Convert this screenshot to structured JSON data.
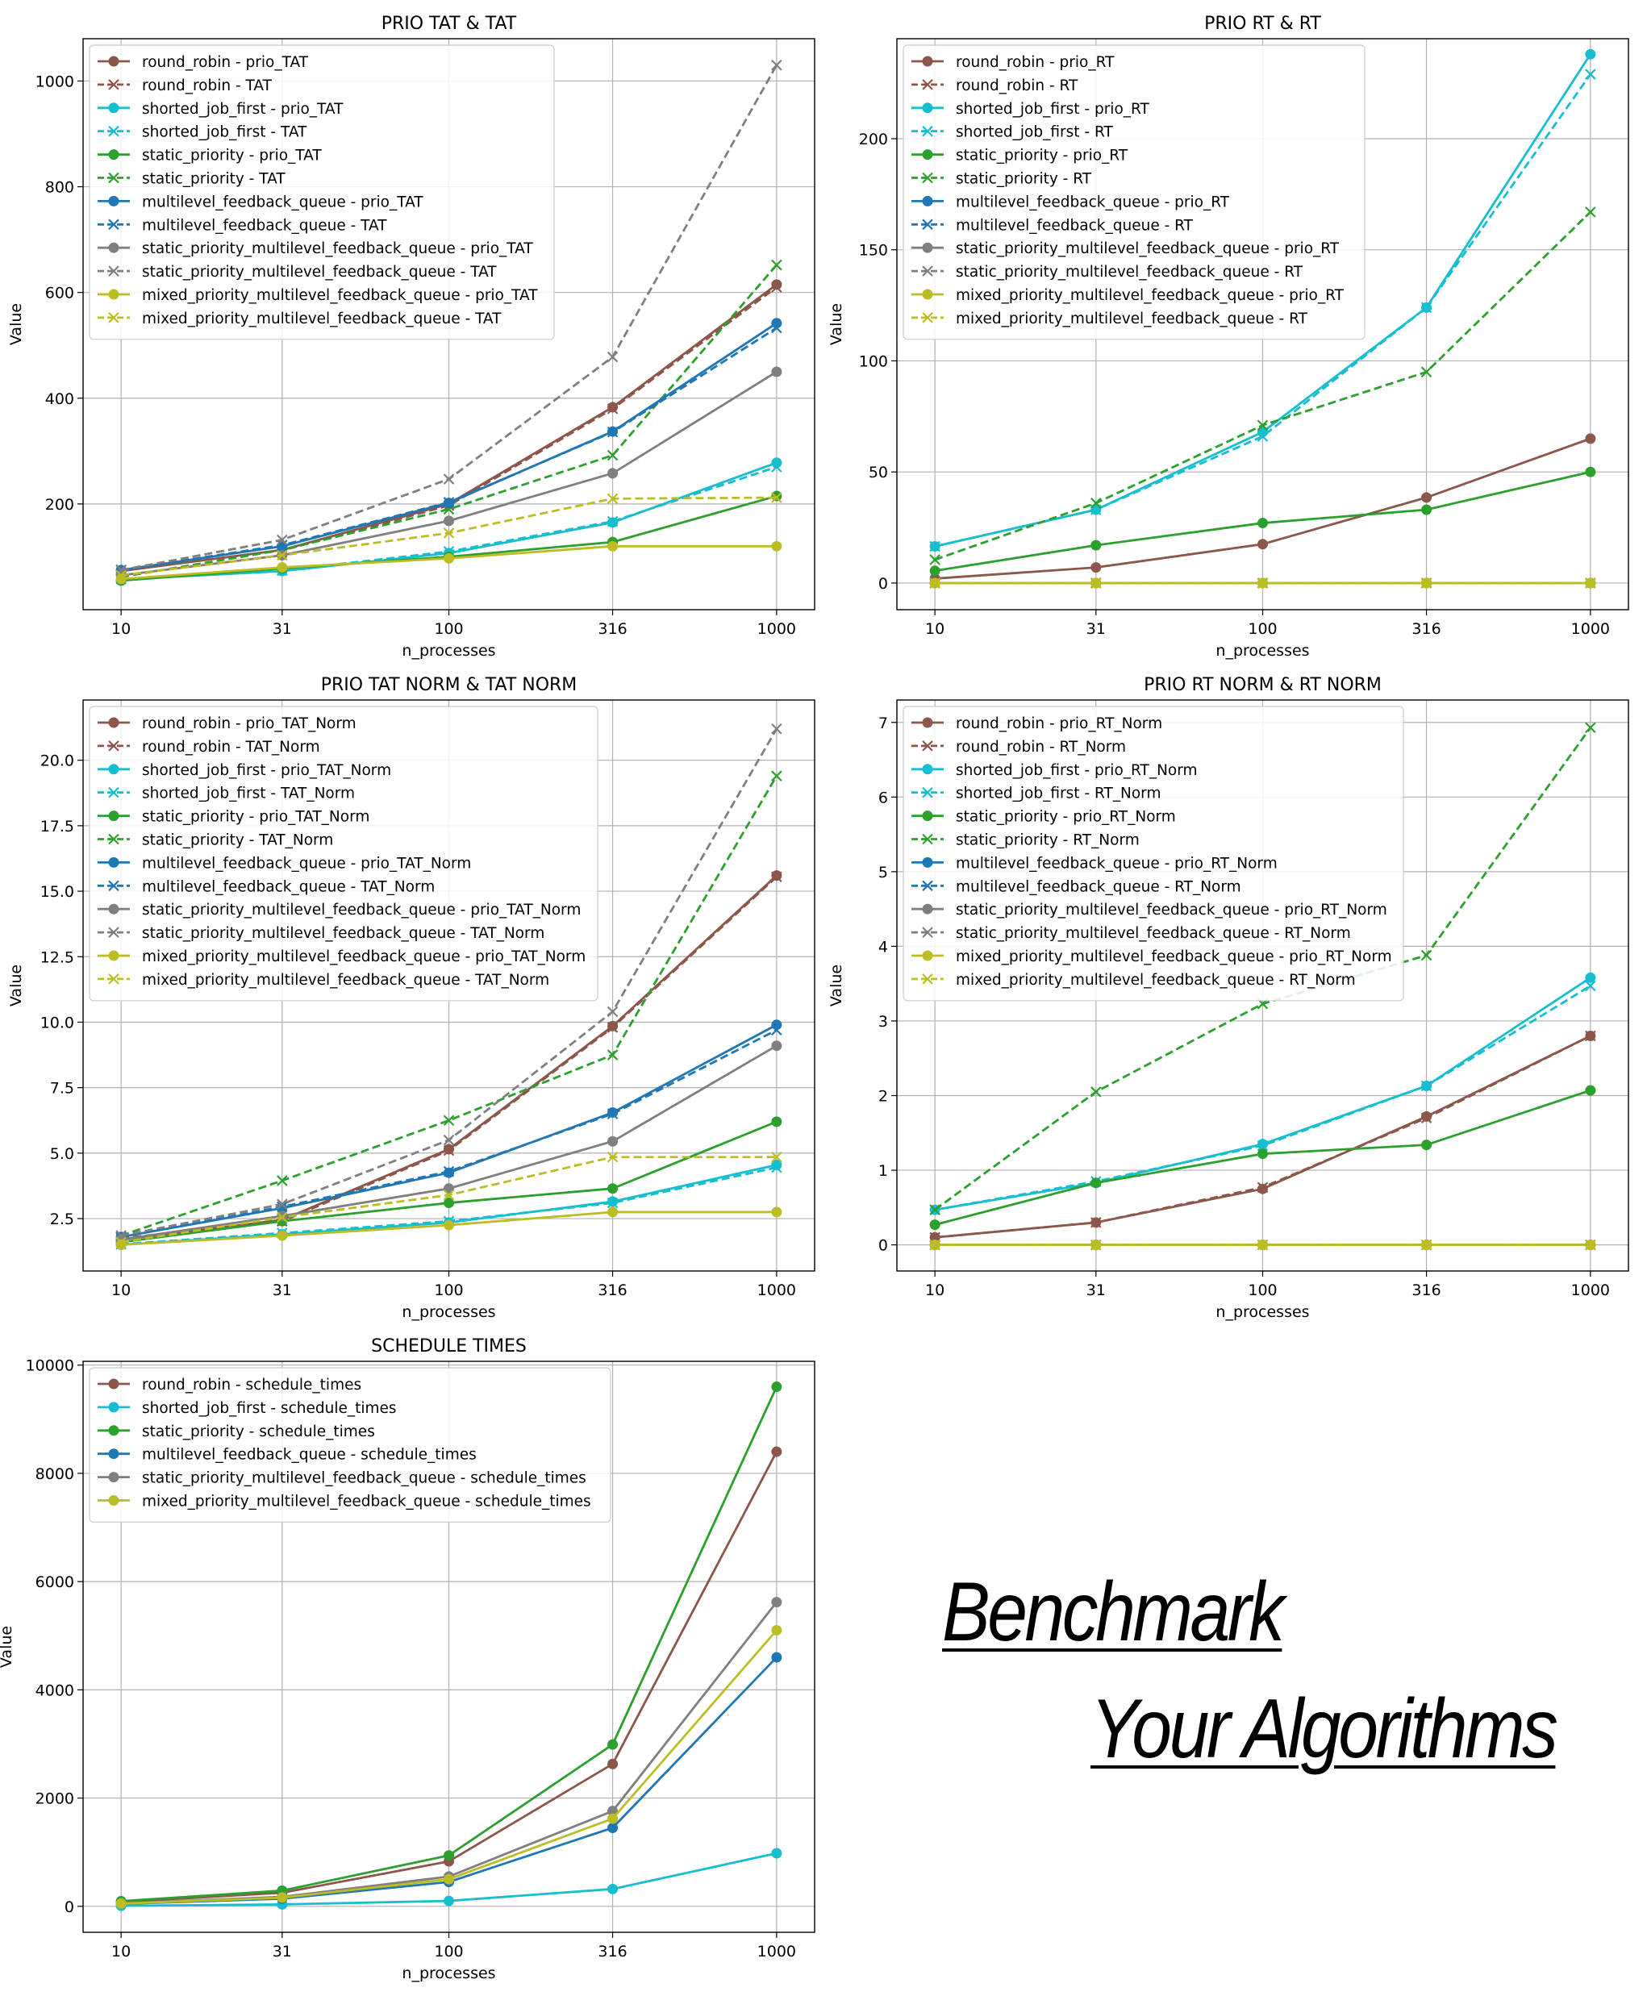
{
  "chart_data": [
    {
      "type": "line",
      "title": "PRIO TAT & TAT",
      "xlabel": "n_processes",
      "ylabel": "Value",
      "x_scale": "log",
      "x": [
        10,
        31,
        100,
        316,
        1000
      ],
      "xticks": [
        "10",
        "31",
        "100",
        "316",
        "1000"
      ],
      "yticks": [
        "200",
        "400",
        "600",
        "800",
        "1000"
      ],
      "ylim": [
        0,
        1080
      ],
      "grid": true,
      "legend_position": "top-left",
      "series": [
        {
          "name": "round_robin - prio_TAT",
          "color": "#8c564b",
          "style": "solid",
          "marker": "o",
          "values": [
            73,
            113,
            200,
            383,
            615
          ]
        },
        {
          "name": "round_robin - TAT",
          "color": "#8c564b",
          "style": "dashed",
          "marker": "x",
          "values": [
            75,
            112,
            197,
            380,
            610
          ]
        },
        {
          "name": "shorted_job_first - prio_TAT",
          "color": "#17becf",
          "style": "solid",
          "marker": "o",
          "values": [
            57,
            73,
            107,
            165,
            278
          ]
        },
        {
          "name": "shorted_job_first - TAT",
          "color": "#17becf",
          "style": "dashed",
          "marker": "x",
          "values": [
            58,
            74,
            110,
            167,
            270
          ]
        },
        {
          "name": "static_priority - prio_TAT",
          "color": "#2ca02c",
          "style": "solid",
          "marker": "o",
          "values": [
            55,
            78,
            100,
            128,
            215
          ]
        },
        {
          "name": "static_priority - TAT",
          "color": "#2ca02c",
          "style": "dashed",
          "marker": "x",
          "values": [
            62,
            113,
            190,
            292,
            652
          ]
        },
        {
          "name": "multilevel_feedback_queue - prio_TAT",
          "color": "#1f77b4",
          "style": "solid",
          "marker": "o",
          "values": [
            75,
            120,
            202,
            337,
            542
          ]
        },
        {
          "name": "multilevel_feedback_queue - TAT",
          "color": "#1f77b4",
          "style": "dashed",
          "marker": "x",
          "values": [
            75,
            122,
            203,
            336,
            533
          ]
        },
        {
          "name": "static_priority_multilevel_feedback_queue - prio_TAT",
          "color": "#7f7f7f",
          "style": "solid",
          "marker": "o",
          "values": [
            65,
            103,
            168,
            258,
            450
          ]
        },
        {
          "name": "static_priority_multilevel_feedback_queue - TAT",
          "color": "#7f7f7f",
          "style": "dashed",
          "marker": "x",
          "values": [
            75,
            132,
            247,
            478,
            1030
          ]
        },
        {
          "name": "mixed_priority_multilevel_feedback_queue - prio_TAT",
          "color": "#bcbd22",
          "style": "solid",
          "marker": "o",
          "values": [
            58,
            80,
            97,
            120,
            120
          ]
        },
        {
          "name": "mixed_priority_multilevel_feedback_queue - TAT",
          "color": "#bcbd22",
          "style": "dashed",
          "marker": "x",
          "values": [
            65,
            103,
            145,
            210,
            212
          ]
        }
      ]
    },
    {
      "type": "line",
      "title": "PRIO RT & RT",
      "xlabel": "n_processes",
      "ylabel": "Value",
      "x_scale": "log",
      "x": [
        10,
        31,
        100,
        316,
        1000
      ],
      "xticks": [
        "10",
        "31",
        "100",
        "316",
        "1000"
      ],
      "yticks": [
        "0",
        "50",
        "100",
        "150",
        "200"
      ],
      "ylim": [
        -12,
        245
      ],
      "grid": true,
      "legend_position": "top-left",
      "series": [
        {
          "name": "round_robin - prio_RT",
          "color": "#8c564b",
          "style": "solid",
          "marker": "o",
          "values": [
            2,
            7,
            17.5,
            38.5,
            65
          ]
        },
        {
          "name": "round_robin - RT",
          "color": "#8c564b",
          "style": "dashed",
          "marker": "x",
          "values": [
            0,
            0,
            0,
            0,
            0
          ]
        },
        {
          "name": "shorted_job_first - prio_RT",
          "color": "#17becf",
          "style": "solid",
          "marker": "o",
          "values": [
            16.5,
            33,
            68,
            124,
            238
          ]
        },
        {
          "name": "shorted_job_first - RT",
          "color": "#17becf",
          "style": "dashed",
          "marker": "x",
          "values": [
            16.5,
            33,
            66,
            124,
            229
          ]
        },
        {
          "name": "static_priority - prio_RT",
          "color": "#2ca02c",
          "style": "solid",
          "marker": "o",
          "values": [
            5.5,
            17,
            27,
            33,
            50
          ]
        },
        {
          "name": "static_priority - RT",
          "color": "#2ca02c",
          "style": "dashed",
          "marker": "x",
          "values": [
            10.5,
            36,
            71,
            95,
            167
          ]
        },
        {
          "name": "multilevel_feedback_queue - prio_RT",
          "color": "#1f77b4",
          "style": "solid",
          "marker": "o",
          "values": [
            0,
            0,
            0,
            0,
            0
          ]
        },
        {
          "name": "multilevel_feedback_queue - RT",
          "color": "#1f77b4",
          "style": "dashed",
          "marker": "x",
          "values": [
            0,
            0,
            0,
            0,
            0
          ]
        },
        {
          "name": "static_priority_multilevel_feedback_queue - prio_RT",
          "color": "#7f7f7f",
          "style": "solid",
          "marker": "o",
          "values": [
            0,
            0,
            0,
            0,
            0
          ]
        },
        {
          "name": "static_priority_multilevel_feedback_queue - RT",
          "color": "#7f7f7f",
          "style": "dashed",
          "marker": "x",
          "values": [
            0,
            0,
            0,
            0,
            0
          ]
        },
        {
          "name": "mixed_priority_multilevel_feedback_queue - prio_RT",
          "color": "#bcbd22",
          "style": "solid",
          "marker": "o",
          "values": [
            0,
            0,
            0,
            0,
            0
          ]
        },
        {
          "name": "mixed_priority_multilevel_feedback_queue - RT",
          "color": "#bcbd22",
          "style": "dashed",
          "marker": "x",
          "values": [
            0,
            0,
            0,
            0,
            0
          ]
        }
      ]
    },
    {
      "type": "line",
      "title": "PRIO TAT NORM & TAT NORM",
      "xlabel": "n_processes",
      "ylabel": "Value",
      "x_scale": "log",
      "x": [
        10,
        31,
        100,
        316,
        1000
      ],
      "xticks": [
        "10",
        "31",
        "100",
        "316",
        "1000"
      ],
      "yticks": [
        "2.5",
        "5.0",
        "7.5",
        "10.0",
        "12.5",
        "15.0",
        "17.5",
        "20.0"
      ],
      "ylim": [
        0.5,
        22.3
      ],
      "grid": true,
      "legend_position": "top-left",
      "series": [
        {
          "name": "round_robin - prio_TAT_Norm",
          "color": "#8c564b",
          "style": "solid",
          "marker": "o",
          "values": [
            1.7,
            2.45,
            5.15,
            9.85,
            15.6
          ]
        },
        {
          "name": "round_robin - TAT_Norm",
          "color": "#8c564b",
          "style": "dashed",
          "marker": "x",
          "values": [
            1.75,
            2.4,
            5.1,
            9.8,
            15.55
          ]
        },
        {
          "name": "shorted_job_first - prio_TAT_Norm",
          "color": "#17becf",
          "style": "solid",
          "marker": "o",
          "values": [
            1.5,
            1.9,
            2.35,
            3.15,
            4.55
          ]
        },
        {
          "name": "shorted_job_first - TAT_Norm",
          "color": "#17becf",
          "style": "dashed",
          "marker": "x",
          "values": [
            1.52,
            1.95,
            2.4,
            3.1,
            4.45
          ]
        },
        {
          "name": "static_priority - prio_TAT_Norm",
          "color": "#2ca02c",
          "style": "solid",
          "marker": "o",
          "values": [
            1.6,
            2.4,
            3.1,
            3.65,
            6.2
          ]
        },
        {
          "name": "static_priority - TAT_Norm",
          "color": "#2ca02c",
          "style": "dashed",
          "marker": "x",
          "values": [
            1.85,
            3.95,
            6.25,
            8.75,
            19.4
          ]
        },
        {
          "name": "multilevel_feedback_queue - prio_TAT_Norm",
          "color": "#1f77b4",
          "style": "solid",
          "marker": "o",
          "values": [
            1.8,
            2.9,
            4.25,
            6.55,
            9.9
          ]
        },
        {
          "name": "multilevel_feedback_queue - TAT_Norm",
          "color": "#1f77b4",
          "style": "dashed",
          "marker": "x",
          "values": [
            1.8,
            2.95,
            4.3,
            6.5,
            9.7
          ]
        },
        {
          "name": "static_priority_multilevel_feedback_queue - prio_TAT_Norm",
          "color": "#7f7f7f",
          "style": "solid",
          "marker": "o",
          "values": [
            1.7,
            2.6,
            3.65,
            5.45,
            9.1
          ]
        },
        {
          "name": "static_priority_multilevel_feedback_queue - TAT_Norm",
          "color": "#7f7f7f",
          "style": "dashed",
          "marker": "x",
          "values": [
            1.85,
            3.05,
            5.5,
            10.4,
            21.2
          ]
        },
        {
          "name": "mixed_priority_multilevel_feedback_queue - prio_TAT_Norm",
          "color": "#bcbd22",
          "style": "solid",
          "marker": "o",
          "values": [
            1.5,
            1.85,
            2.25,
            2.75,
            2.75
          ]
        },
        {
          "name": "mixed_priority_multilevel_feedback_queue - TAT_Norm",
          "color": "#bcbd22",
          "style": "dashed",
          "marker": "x",
          "values": [
            1.6,
            2.55,
            3.4,
            4.85,
            4.85
          ]
        }
      ]
    },
    {
      "type": "line",
      "title": "PRIO RT NORM & RT NORM",
      "xlabel": "n_processes",
      "ylabel": "Value",
      "x_scale": "log",
      "x": [
        10,
        31,
        100,
        316,
        1000
      ],
      "xticks": [
        "10",
        "31",
        "100",
        "316",
        "1000"
      ],
      "yticks": [
        "0",
        "1",
        "2",
        "3",
        "4",
        "5",
        "6",
        "7"
      ],
      "ylim": [
        -0.35,
        7.3
      ],
      "grid": true,
      "legend_position": "top-left",
      "series": [
        {
          "name": "round_robin - prio_RT_Norm",
          "color": "#8c564b",
          "style": "solid",
          "marker": "o",
          "values": [
            0.1,
            0.3,
            0.75,
            1.72,
            2.8
          ]
        },
        {
          "name": "round_robin - RT_Norm",
          "color": "#8c564b",
          "style": "dashed",
          "marker": "x",
          "values": [
            0.1,
            0.3,
            0.77,
            1.7,
            2.8
          ]
        },
        {
          "name": "shorted_job_first - prio_RT_Norm",
          "color": "#17becf",
          "style": "solid",
          "marker": "o",
          "values": [
            0.47,
            0.83,
            1.35,
            2.13,
            3.58
          ]
        },
        {
          "name": "shorted_job_first - RT_Norm",
          "color": "#17becf",
          "style": "dashed",
          "marker": "x",
          "values": [
            0.47,
            0.85,
            1.33,
            2.13,
            3.47
          ]
        },
        {
          "name": "static_priority - prio_RT_Norm",
          "color": "#2ca02c",
          "style": "solid",
          "marker": "o",
          "values": [
            0.27,
            0.83,
            1.22,
            1.34,
            2.07
          ]
        },
        {
          "name": "static_priority - RT_Norm",
          "color": "#2ca02c",
          "style": "dashed",
          "marker": "x",
          "values": [
            0.47,
            2.05,
            3.23,
            3.88,
            6.93
          ]
        },
        {
          "name": "multilevel_feedback_queue - prio_RT_Norm",
          "color": "#1f77b4",
          "style": "solid",
          "marker": "o",
          "values": [
            0,
            0,
            0,
            0,
            0
          ]
        },
        {
          "name": "multilevel_feedback_queue - RT_Norm",
          "color": "#1f77b4",
          "style": "dashed",
          "marker": "x",
          "values": [
            0,
            0,
            0,
            0,
            0
          ]
        },
        {
          "name": "static_priority_multilevel_feedback_queue - prio_RT_Norm",
          "color": "#7f7f7f",
          "style": "solid",
          "marker": "o",
          "values": [
            0,
            0,
            0,
            0,
            0
          ]
        },
        {
          "name": "static_priority_multilevel_feedback_queue - RT_Norm",
          "color": "#7f7f7f",
          "style": "dashed",
          "marker": "x",
          "values": [
            0,
            0,
            0,
            0,
            0
          ]
        },
        {
          "name": "mixed_priority_multilevel_feedback_queue - prio_RT_Norm",
          "color": "#bcbd22",
          "style": "solid",
          "marker": "o",
          "values": [
            0,
            0,
            0,
            0,
            0
          ]
        },
        {
          "name": "mixed_priority_multilevel_feedback_queue - RT_Norm",
          "color": "#bcbd22",
          "style": "dashed",
          "marker": "x",
          "values": [
            0,
            0,
            0,
            0,
            0
          ]
        }
      ]
    },
    {
      "type": "line",
      "title": "SCHEDULE TIMES",
      "xlabel": "n_processes",
      "ylabel": "Value",
      "x_scale": "log",
      "x": [
        10,
        31,
        100,
        316,
        1000
      ],
      "xticks": [
        "10",
        "31",
        "100",
        "316",
        "1000"
      ],
      "yticks": [
        "0",
        "2000",
        "4000",
        "6000",
        "8000",
        "10000"
      ],
      "ylim": [
        -480,
        10070
      ],
      "grid": true,
      "legend_position": "top-left",
      "series": [
        {
          "name": "round_robin - schedule_times",
          "color": "#8c564b",
          "style": "solid",
          "marker": "o",
          "values": [
            80,
            250,
            830,
            2630,
            8400
          ]
        },
        {
          "name": "shorted_job_first - schedule_times",
          "color": "#17becf",
          "style": "solid",
          "marker": "o",
          "values": [
            10,
            35,
            100,
            320,
            980
          ]
        },
        {
          "name": "static_priority - schedule_times",
          "color": "#2ca02c",
          "style": "solid",
          "marker": "o",
          "values": [
            95,
            290,
            940,
            2990,
            9600
          ]
        },
        {
          "name": "multilevel_feedback_queue - schedule_times",
          "color": "#1f77b4",
          "style": "solid",
          "marker": "o",
          "values": [
            45,
            140,
            450,
            1450,
            4600
          ]
        },
        {
          "name": "static_priority_multilevel_feedback_queue - schedule_times",
          "color": "#7f7f7f",
          "style": "solid",
          "marker": "o",
          "values": [
            55,
            175,
            550,
            1760,
            5620
          ]
        },
        {
          "name": "mixed_priority_multilevel_feedback_queue - schedule_times",
          "color": "#bcbd22",
          "style": "solid",
          "marker": "o",
          "values": [
            50,
            160,
            500,
            1620,
            5100
          ]
        }
      ]
    }
  ],
  "tagline": {
    "line1": "Benchmark",
    "line2": "Your Algorithms"
  }
}
